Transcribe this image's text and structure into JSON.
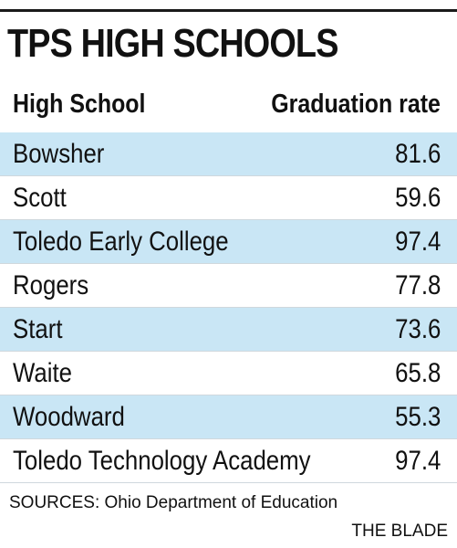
{
  "chart_data": {
    "type": "table",
    "title": "TPS HIGH SCHOOLS",
    "columns": [
      "High School",
      "Graduation rate"
    ],
    "categories": [
      "Bowsher",
      "Scott",
      "Toledo Early College",
      "Rogers",
      "Start",
      "Waite",
      "Woodward",
      "Toledo Technology Academy"
    ],
    "values": [
      "81.6",
      "59.6",
      "97.4",
      "77.8",
      "73.6",
      "65.8",
      "55.3",
      "97.4"
    ],
    "band_color": "#c9e6f5",
    "source": "SOURCES: Ohio Department of Education",
    "credit": "THE BLADE"
  }
}
